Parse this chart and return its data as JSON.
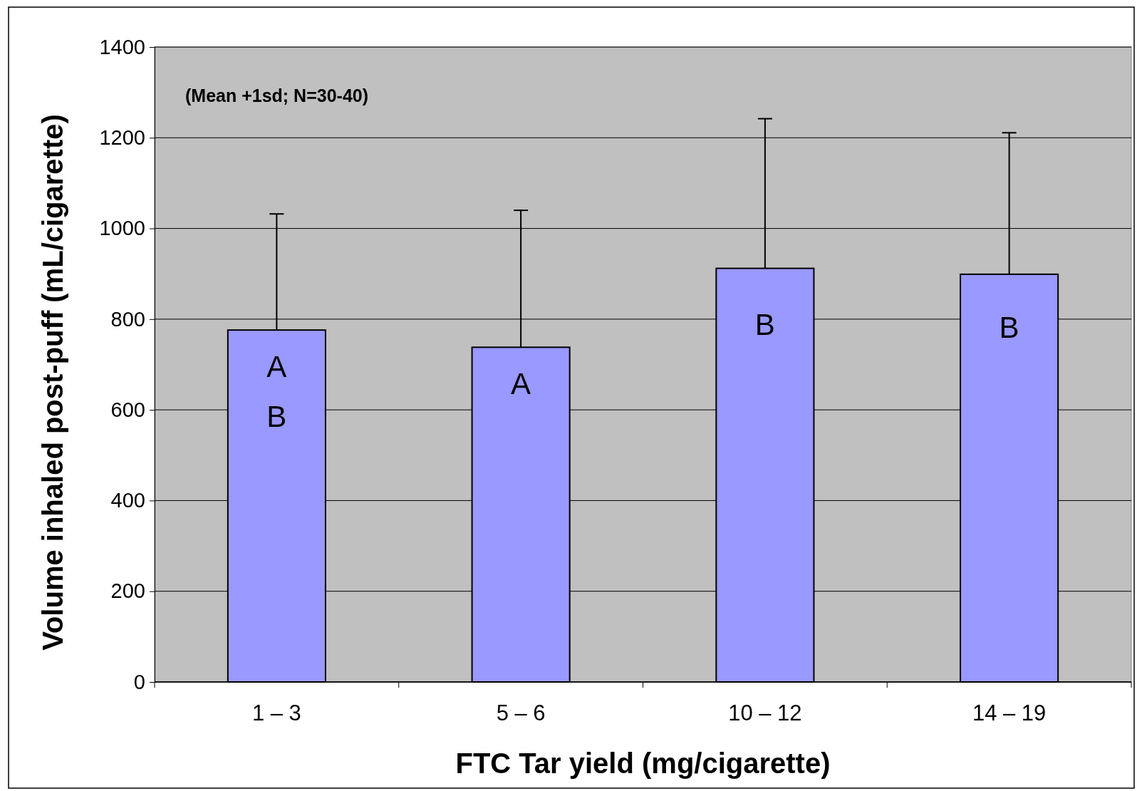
{
  "chart_data": {
    "type": "bar",
    "xlabel": "FTC Tar yield (mg/cigarette)",
    "ylabel": "Volume inhaled post-puff (mL/cigarette)",
    "categories": [
      "1 – 3",
      "5 – 6",
      "10 – 12",
      "14 – 19"
    ],
    "values": [
      776,
      738,
      912,
      899
    ],
    "color": "#9999ff",
    "errors": [
      [
        776,
        1032
      ],
      [
        738,
        1040
      ],
      [
        912,
        1242
      ],
      [
        899,
        1211
      ]
    ],
    "ylim": [
      0,
      1400
    ],
    "yticks": [
      0,
      200,
      400,
      600,
      800,
      1000,
      1200,
      1400
    ],
    "grid": "y",
    "annotations": [
      "(Mean +1sd; N=30-40)",
      "A",
      "B",
      "A",
      "B",
      "B"
    ]
  }
}
